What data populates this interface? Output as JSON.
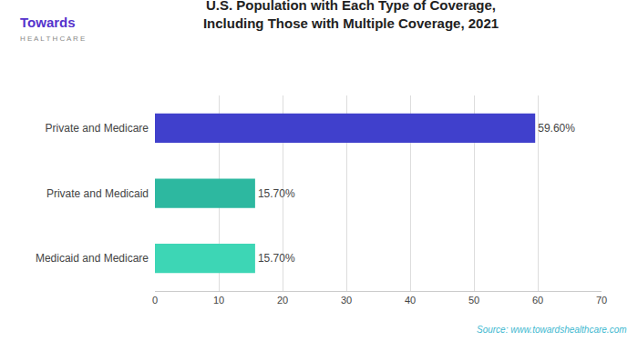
{
  "chart_data": {
    "type": "bar",
    "orientation": "horizontal",
    "title": "U.S. Population with Each Type of Coverage,\nIncluding Those with Multiple Coverage, 2021",
    "categories": [
      "Medicaid and Medicare",
      "Private and Medicaid",
      "Private and Medicare"
    ],
    "values": [
      15.7,
      15.7,
      59.6
    ],
    "value_labels": [
      "15.70%",
      "15.70%",
      "59.60%"
    ],
    "data_labels": true,
    "colors": [
      "#3dd6b5",
      "#2db8a0",
      "#4040cc"
    ],
    "xlim": [
      0,
      70
    ],
    "xticks": [
      0,
      10,
      20,
      30,
      40,
      50,
      60,
      70
    ],
    "grid": true,
    "annotations": [
      "Towards",
      "H E A L T H C A R E",
      "Source: www.towardshealthcare.com"
    ]
  }
}
